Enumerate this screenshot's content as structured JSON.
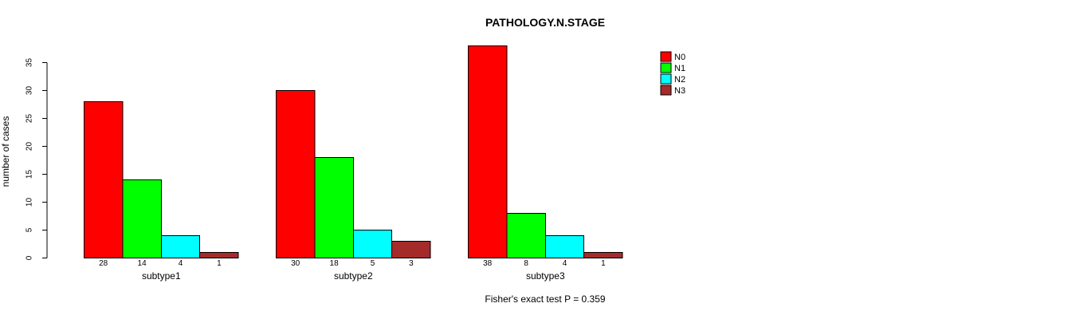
{
  "chart_data": {
    "type": "bar",
    "title": "PATHOLOGY.N.STAGE",
    "ylabel": "number of cases",
    "xlabel": "",
    "ylim": [
      0,
      35
    ],
    "yticks": [
      0,
      5,
      10,
      15,
      20,
      25,
      30,
      35
    ],
    "grid": false,
    "legend_position": "right",
    "categories": [
      "subtype1",
      "subtype2",
      "subtype3"
    ],
    "series": [
      {
        "name": "N0",
        "color": "#FF0000",
        "values": [
          28,
          30,
          38
        ]
      },
      {
        "name": "N1",
        "color": "#00FF00",
        "values": [
          14,
          18,
          8
        ]
      },
      {
        "name": "N2",
        "color": "#00FFFF",
        "values": [
          4,
          5,
          4
        ]
      },
      {
        "name": "N3",
        "color": "#A52A2A",
        "values": [
          1,
          3,
          1
        ]
      }
    ],
    "bar_value_labels_shown": true,
    "annotation": "Fisher's exact test P = 0.359",
    "colors": {
      "background": "#FFFFFF",
      "axis": "#000000",
      "text": "#000000",
      "bar_border": "#000000"
    }
  }
}
